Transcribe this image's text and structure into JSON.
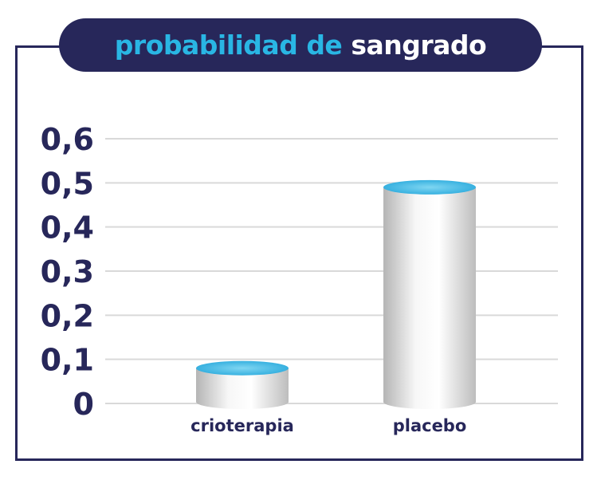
{
  "title": {
    "part1": "probabilidad de",
    "part2": "sangrado"
  },
  "colors": {
    "navy": "#27275a",
    "accent": "#29b6e4",
    "grid": "#d9d9d9",
    "bar": "#e6e6e6"
  },
  "chart_data": {
    "type": "bar",
    "title": "probabilidad de sangrado",
    "categories": [
      "crioterapia",
      "placebo"
    ],
    "values": [
      0.08,
      0.49
    ],
    "ylim": [
      0,
      0.6
    ],
    "yticks": [
      "0",
      "0,1",
      "0,2",
      "0,3",
      "0,4",
      "0,5",
      "0,6"
    ],
    "grid": true,
    "legend": "none"
  }
}
